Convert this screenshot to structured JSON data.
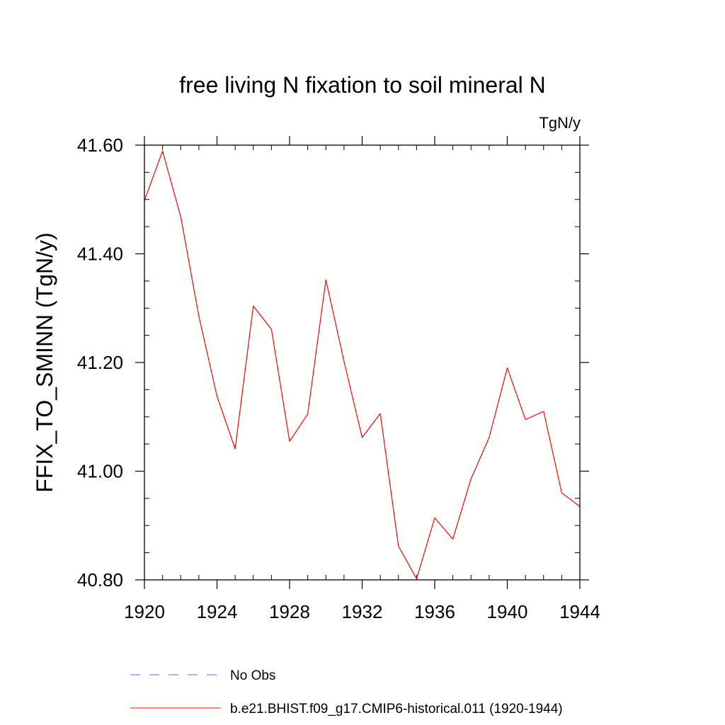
{
  "chart_data": {
    "type": "line",
    "title": "free living N fixation to soil mineral N",
    "units_label": "TgN/y",
    "ylabel": "FFIX_TO_SMINN  (TgN/y)",
    "xlabel": "",
    "xlim": [
      1920,
      1944
    ],
    "ylim": [
      40.8,
      41.6
    ],
    "x_ticks": [
      1920,
      1924,
      1928,
      1932,
      1936,
      1940,
      1944
    ],
    "x_tick_labels": [
      "1920",
      "1924",
      "1928",
      "1932",
      "1936",
      "1940",
      "1944"
    ],
    "y_ticks": [
      40.8,
      41.0,
      41.2,
      41.4,
      41.6
    ],
    "y_tick_labels": [
      "40.80",
      "41.00",
      "41.20",
      "41.40",
      "41.60"
    ],
    "grid": false,
    "legend_position": "bottom",
    "series": [
      {
        "name": "No Obs",
        "color": "#6a6acc",
        "dash": "dashed",
        "x": [],
        "values": []
      },
      {
        "name": "b.e21.BHIST.f09_g17.CMIP6-historical.011 (1920-1944)",
        "color": "#ff0000",
        "dash": "solid",
        "x": [
          1920,
          1921,
          1922,
          1923,
          1924,
          1925,
          1926,
          1927,
          1928,
          1929,
          1930,
          1931,
          1932,
          1933,
          1934,
          1935,
          1936,
          1937,
          1938,
          1939,
          1940,
          1941,
          1942,
          1943,
          1944
        ],
        "values": [
          41.498,
          41.589,
          41.468,
          41.285,
          41.138,
          41.041,
          41.304,
          41.261,
          41.055,
          41.105,
          41.352,
          41.202,
          41.062,
          41.106,
          40.862,
          40.802,
          40.914,
          40.875,
          40.986,
          41.062,
          41.19,
          41.095,
          41.11,
          40.96,
          40.935
        ]
      }
    ]
  }
}
